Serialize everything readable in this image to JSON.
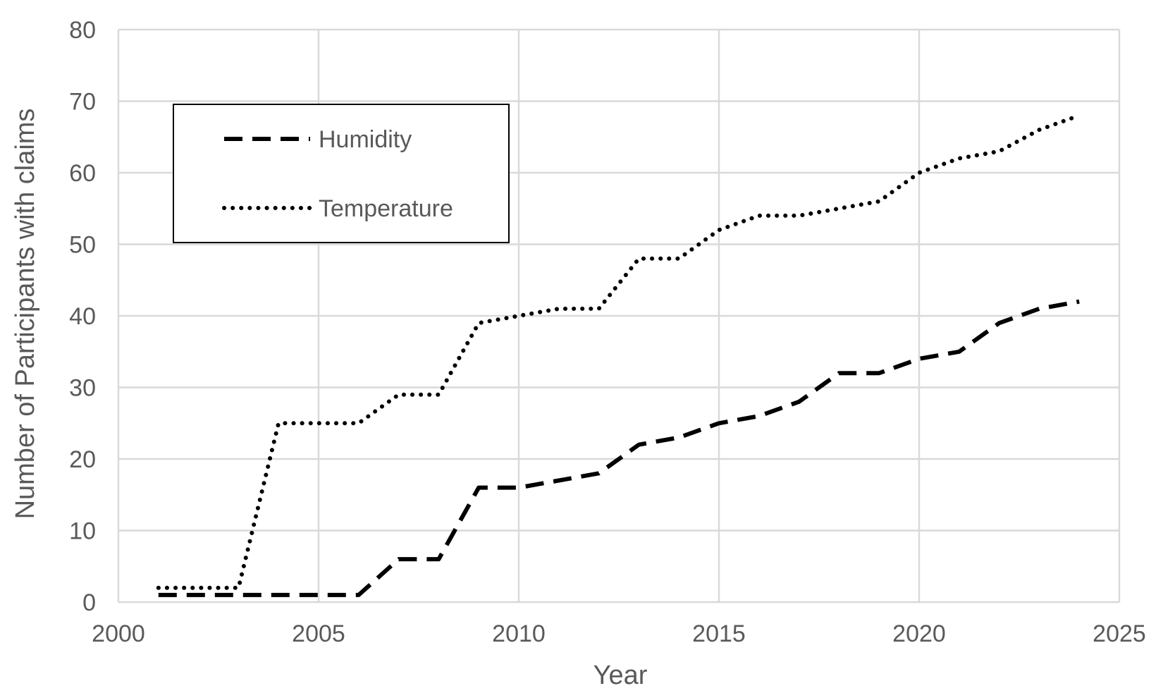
{
  "chart_data": {
    "type": "line",
    "xlabel": "Year",
    "ylabel": "Number of Participants with claims",
    "xlim": [
      2000,
      2025
    ],
    "ylim": [
      0,
      80
    ],
    "x_ticks": [
      2000,
      2005,
      2010,
      2015,
      2020,
      2025
    ],
    "y_ticks": [
      0,
      10,
      20,
      30,
      40,
      50,
      60,
      70,
      80
    ],
    "grid": true,
    "legend_position": "top-left",
    "x": [
      2001,
      2002,
      2003,
      2004,
      2005,
      2006,
      2007,
      2008,
      2009,
      2010,
      2011,
      2012,
      2013,
      2014,
      2015,
      2016,
      2017,
      2018,
      2019,
      2020,
      2021,
      2022,
      2023,
      2024
    ],
    "series": [
      {
        "name": "Humidity",
        "style": "dashed",
        "color": "#000000",
        "values": [
          1,
          1,
          1,
          1,
          1,
          1,
          6,
          6,
          16,
          16,
          17,
          18,
          22,
          23,
          25,
          26,
          28,
          32,
          32,
          34,
          35,
          39,
          41,
          42
        ]
      },
      {
        "name": "Temperature",
        "style": "dotted",
        "color": "#000000",
        "values": [
          2,
          2,
          2,
          25,
          25,
          25,
          29,
          29,
          39,
          40,
          41,
          41,
          48,
          48,
          52,
          54,
          54,
          55,
          56,
          60,
          62,
          63,
          66,
          68
        ]
      }
    ],
    "colors": {
      "grid": "#d9d9d9",
      "text": "#595959",
      "line": "#000000"
    }
  }
}
